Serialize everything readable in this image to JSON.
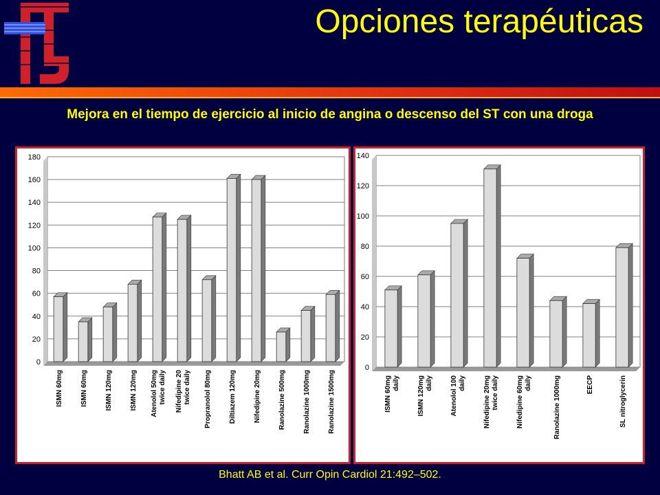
{
  "title": "Opciones terapéuticas",
  "subtitle": "Mejora en el tiempo de ejercicio al inicio de angina o descenso del ST con una droga",
  "citation": "Bhatt AB et al. Curr Opin Cardiol 21:492–502.",
  "colors": {
    "background": "#000040",
    "title": "#ffff00",
    "panel_border": "#d0202a",
    "bar_fill": "#dcdcdc",
    "bar_side": "#7a7a7a"
  },
  "chart_data": [
    {
      "type": "bar",
      "title": "",
      "xlabel": "",
      "ylabel": "",
      "ylim": [
        0,
        180
      ],
      "yticks": [
        0,
        20,
        40,
        60,
        80,
        100,
        120,
        140,
        160,
        180
      ],
      "grid": true,
      "categories": [
        [
          "ISMN 60mg"
        ],
        [
          "ISMN 60mg"
        ],
        [
          "ISMN 120mg"
        ],
        [
          "ISMN 120mg"
        ],
        [
          "Atenolol 50mg",
          "twice daily"
        ],
        [
          "Nifedipine 20",
          "twice daily"
        ],
        [
          "Propranolol 80mg"
        ],
        [
          "Diltiazem 120mg"
        ],
        [
          "Nifedipine 20mg"
        ],
        [
          "Ranolazine 500mg"
        ],
        [
          "Ranolazine 1000mg"
        ],
        [
          "Ranolazine 1500mg"
        ]
      ],
      "values": [
        57,
        35,
        48,
        68,
        127,
        125,
        72,
        161,
        160,
        26,
        45,
        59
      ]
    },
    {
      "type": "bar",
      "title": "",
      "xlabel": "",
      "ylabel": "",
      "ylim": [
        0,
        140
      ],
      "yticks": [
        0,
        20,
        40,
        60,
        80,
        100,
        120,
        140
      ],
      "grid": true,
      "categories": [
        [
          "ISMN 60mg",
          "daily"
        ],
        [
          "ISMN 120mg",
          "daily"
        ],
        [
          "Atenolol 100",
          "daily"
        ],
        [
          "Nifedipine 20mg",
          "twice daily"
        ],
        [
          "Nifedipine 60mg",
          "daily"
        ],
        [
          "Ranolazine 1000mg"
        ],
        [
          "EECP"
        ],
        [
          "SL nitroglycerin"
        ]
      ],
      "values": [
        51,
        61,
        95,
        131,
        72,
        44,
        42,
        79
      ]
    }
  ]
}
